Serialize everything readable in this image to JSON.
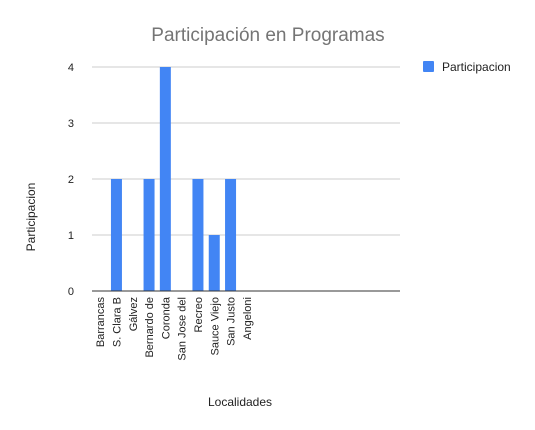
{
  "chart_data": {
    "type": "bar",
    "title": "Participación en Programas",
    "xlabel": "Localidades",
    "ylabel": "Participacion",
    "categories": [
      "Barrancas",
      "S. Clara B",
      "Gálvez",
      "Bernardo de",
      "Coronda",
      "San Jose del",
      "Recreo",
      "Sauce Viejo",
      "San Justo",
      "Angeloni",
      "",
      "",
      "",
      "",
      "",
      "",
      "",
      "",
      ""
    ],
    "series": [
      {
        "name": "Participacion",
        "values": [
          0,
          2,
          0,
          2,
          4,
          0,
          2,
          1,
          2,
          0,
          null,
          null,
          null,
          null,
          null,
          null,
          null,
          null,
          null
        ]
      }
    ],
    "ylim": [
      0,
      4
    ],
    "yticks": [
      "0",
      "1",
      "2",
      "3",
      "4"
    ],
    "grid": true,
    "legend": "right",
    "colors": {
      "bar": "#4285f4",
      "grid": "#cccccc",
      "axis": "#333333"
    }
  }
}
